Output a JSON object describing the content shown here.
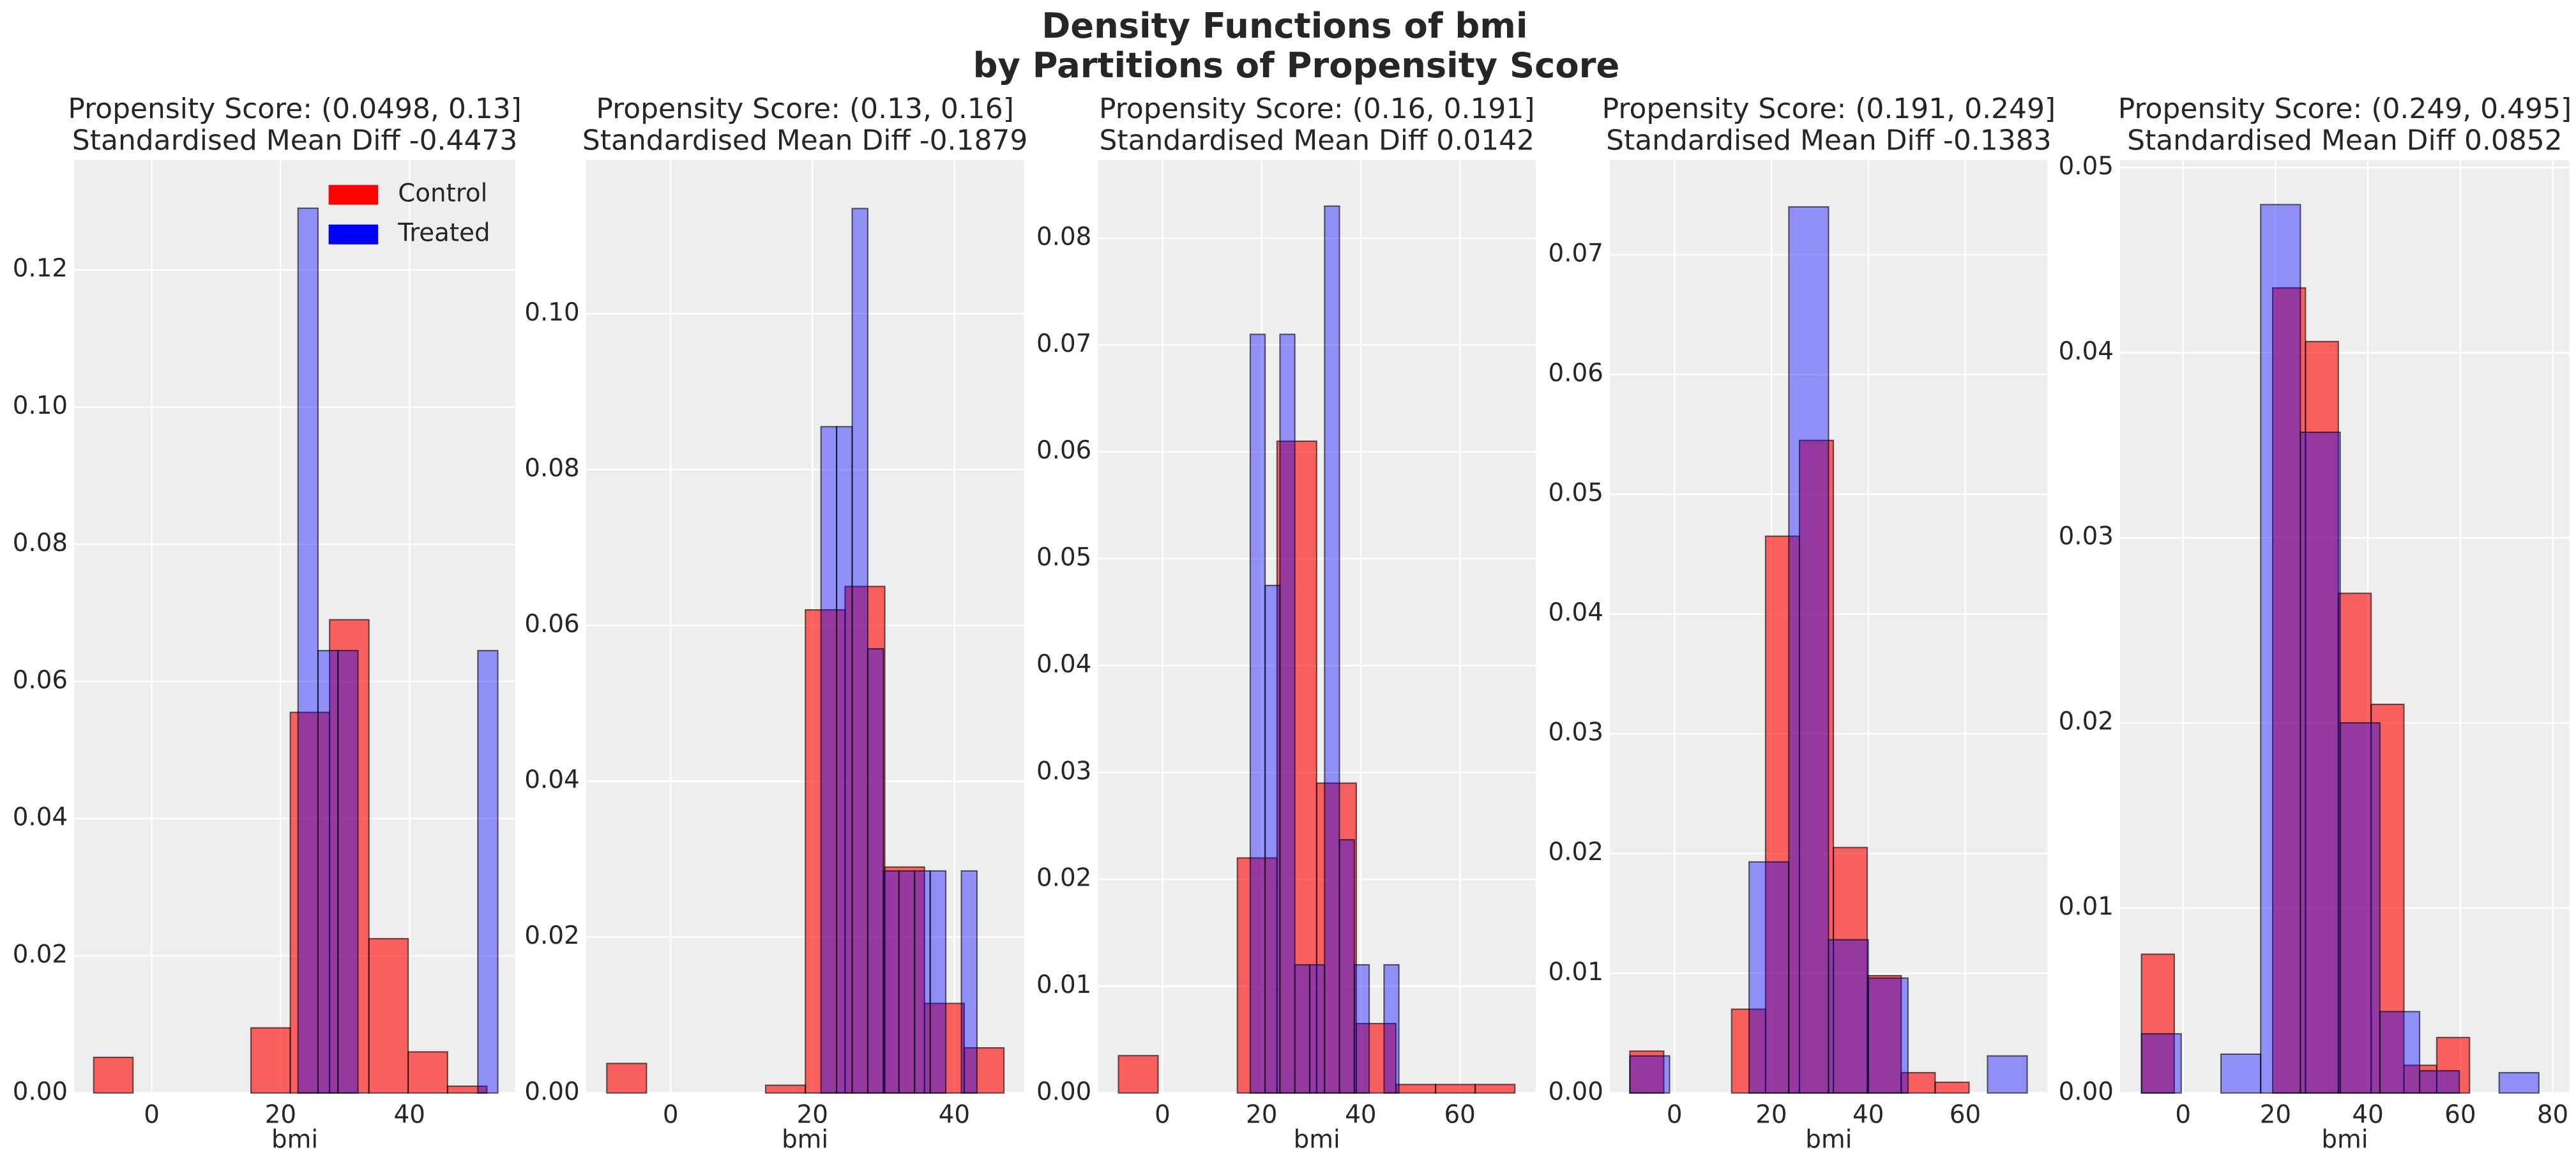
{
  "title": [
    "Density Functions of bmi",
    "by Partitions of Propensity Score"
  ],
  "chart_data": [
    {
      "type": "histogram",
      "title": "Propensity Score: (0.0498, 0.13]",
      "subtitle": "Standardised Mean Diff -0.4473",
      "xlabel": "bmi",
      "xlim": [
        -12,
        56.4
      ],
      "ylim": [
        0,
        0.136
      ],
      "xticks": [
        0,
        20,
        40
      ],
      "yticks": [
        {
          "value": 0,
          "label": "0.00"
        },
        {
          "value": 0.02,
          "label": "0.02"
        },
        {
          "value": 0.04,
          "label": "0.04"
        },
        {
          "value": 0.06,
          "label": "0.06"
        },
        {
          "value": 0.08,
          "label": "0.08"
        },
        {
          "value": 0.1,
          "label": "0.10"
        },
        {
          "value": 0.12,
          "label": "0.12"
        }
      ],
      "grid": true,
      "legend": "upper right",
      "series": [
        {
          "name": "Control",
          "color": "#ff0000",
          "opacity": 0.6,
          "bins": [
            -9,
            -2.9,
            3.2,
            9.3,
            15.4,
            21.5,
            27.6,
            33.7,
            39.8,
            45.9,
            52
          ],
          "values": [
            0.0052,
            0,
            0,
            0,
            0.0095,
            0.0555,
            0.069,
            0.0225,
            0.006,
            0.001
          ]
        },
        {
          "name": "Treated",
          "color": "#0000ff",
          "opacity": 0.4,
          "bins": [
            22.7,
            25.8,
            28.9,
            32.0,
            35.1,
            38.2,
            41.3,
            44.4,
            47.5,
            50.6,
            53.7
          ],
          "values": [
            0.129,
            0.0645,
            0.0645,
            0,
            0,
            0,
            0,
            0,
            0,
            0.0645
          ]
        }
      ]
    },
    {
      "type": "histogram",
      "title": "Propensity Score: (0.13, 0.16]",
      "subtitle": "Standardised Mean Diff -0.1879",
      "xlabel": "bmi",
      "xlim": [
        -11.9,
        49.8
      ],
      "ylim": [
        0,
        0.1197
      ],
      "xticks": [
        0,
        20,
        40
      ],
      "yticks": [
        {
          "value": 0,
          "label": "0.00"
        },
        {
          "value": 0.02,
          "label": "0.02"
        },
        {
          "value": 0.04,
          "label": "0.04"
        },
        {
          "value": 0.06,
          "label": "0.06"
        },
        {
          "value": 0.08,
          "label": "0.08"
        },
        {
          "value": 0.1,
          "label": "0.10"
        }
      ],
      "grid": true,
      "series": [
        {
          "color": "#ff0000",
          "opacity": 0.6,
          "bins": [
            -9,
            -3.4,
            2.2,
            7.8,
            13.4,
            19,
            24.6,
            30.2,
            35.8,
            41.4,
            47
          ],
          "values": [
            0.0038,
            0,
            0,
            0,
            0.001,
            0.062,
            0.065,
            0.029,
            0.0115,
            0.0058
          ]
        },
        {
          "color": "#0000ff",
          "opacity": 0.4,
          "bins": [
            21.2,
            23.4,
            25.6,
            27.8,
            30,
            32.2,
            34.4,
            36.6,
            38.8,
            41,
            43.2
          ],
          "values": [
            0.0855,
            0.0855,
            0.1135,
            0.057,
            0.0285,
            0.0285,
            0.0285,
            0.0285,
            0,
            0.0285
          ]
        }
      ]
    },
    {
      "type": "histogram",
      "title": "Propensity Score: (0.16, 0.191]",
      "subtitle": "Standardised Mean Diff 0.0142",
      "xlabel": "bmi",
      "xlim": [
        -13,
        75.3
      ],
      "ylim": [
        0,
        0.0873
      ],
      "xticks": [
        0,
        20,
        40,
        60
      ],
      "yticks": [
        {
          "value": 0,
          "label": "0.00"
        },
        {
          "value": 0.01,
          "label": "0.01"
        },
        {
          "value": 0.02,
          "label": "0.02"
        },
        {
          "value": 0.03,
          "label": "0.03"
        },
        {
          "value": 0.04,
          "label": "0.04"
        },
        {
          "value": 0.05,
          "label": "0.05"
        },
        {
          "value": 0.06,
          "label": "0.06"
        },
        {
          "value": 0.07,
          "label": "0.07"
        },
        {
          "value": 0.08,
          "label": "0.08"
        }
      ],
      "grid": true,
      "series": [
        {
          "color": "#ff0000",
          "opacity": 0.6,
          "bins": [
            -8.9,
            -0.9,
            7.1,
            15.1,
            23.1,
            31.1,
            39.1,
            47.1,
            55.1,
            63.1,
            71.1
          ],
          "values": [
            0.0035,
            0,
            0,
            0.022,
            0.061,
            0.029,
            0.0065,
            0.0008,
            0.0008,
            0.0008
          ]
        },
        {
          "color": "#0000ff",
          "opacity": 0.4,
          "bins": [
            17.7,
            20.7,
            23.7,
            26.7,
            29.7,
            32.7,
            35.7,
            38.7,
            41.7,
            44.7,
            47.7
          ],
          "values": [
            0.071,
            0.0475,
            0.071,
            0.012,
            0.012,
            0.083,
            0.0237,
            0.012,
            0,
            0.012
          ]
        }
      ]
    },
    {
      "type": "histogram",
      "title": "Propensity Score: (0.191, 0.249]",
      "subtitle": "Standardised Mean Diff -0.1383",
      "xlabel": "bmi",
      "xlim": [
        -13.3,
        77
      ],
      "ylim": [
        0,
        0.0779
      ],
      "xticks": [
        0,
        20,
        40,
        60
      ],
      "yticks": [
        {
          "value": 0,
          "label": "0.00"
        },
        {
          "value": 0.01,
          "label": "0.01"
        },
        {
          "value": 0.02,
          "label": "0.02"
        },
        {
          "value": 0.03,
          "label": "0.03"
        },
        {
          "value": 0.04,
          "label": "0.04"
        },
        {
          "value": 0.05,
          "label": "0.05"
        },
        {
          "value": 0.06,
          "label": "0.06"
        },
        {
          "value": 0.07,
          "label": "0.07"
        }
      ],
      "grid": true,
      "series": [
        {
          "color": "#ff0000",
          "opacity": 0.6,
          "bins": [
            -9.2,
            -2.2,
            4.8,
            11.8,
            18.8,
            25.8,
            32.8,
            39.8,
            46.8,
            53.8,
            60.8
          ],
          "values": [
            0.0035,
            0,
            0,
            0.007,
            0.0465,
            0.0545,
            0.0205,
            0.0098,
            0.0017,
            0.0009
          ]
        },
        {
          "color": "#0000ff",
          "opacity": 0.4,
          "bins": [
            -9.2,
            -1,
            7.2,
            15.4,
            23.6,
            31.8,
            40,
            48.2,
            56.4,
            64.6,
            72.8
          ],
          "values": [
            0.0031,
            0,
            0,
            0.0193,
            0.074,
            0.0128,
            0.0096,
            0,
            0,
            0.0031
          ]
        }
      ]
    },
    {
      "type": "histogram",
      "title": "Propensity Score: (0.249, 0.495]",
      "subtitle": "Standardised Mean Diff 0.0852",
      "xlabel": "bmi",
      "xlim": [
        -13.6,
        83.6
      ],
      "ylim": [
        0,
        0.0504
      ],
      "xticks": [
        0,
        20,
        40,
        60,
        80
      ],
      "yticks": [
        {
          "value": 0,
          "label": "0.00"
        },
        {
          "value": 0.01,
          "label": "0.01"
        },
        {
          "value": 0.02,
          "label": "0.02"
        },
        {
          "value": 0.03,
          "label": "0.03"
        },
        {
          "value": 0.04,
          "label": "0.04"
        },
        {
          "value": 0.05,
          "label": "0.05"
        }
      ],
      "grid": true,
      "series": [
        {
          "color": "#ff0000",
          "opacity": 0.6,
          "bins": [
            -9,
            -1.9,
            5.2,
            12.3,
            19.4,
            26.5,
            33.6,
            40.7,
            47.8,
            54.9,
            62
          ],
          "values": [
            0.0075,
            0,
            0,
            0,
            0.0435,
            0.0406,
            0.027,
            0.021,
            0.0015,
            0.003
          ]
        },
        {
          "color": "#0000ff",
          "opacity": 0.4,
          "bins": [
            -9,
            -0.4,
            8.2,
            16.8,
            25.4,
            34,
            42.6,
            51.2,
            59.8,
            68.4,
            77
          ],
          "values": [
            0.0032,
            0,
            0.0021,
            0.048,
            0.0357,
            0.02,
            0.0044,
            0.0012,
            0,
            0.0011
          ]
        }
      ]
    }
  ]
}
